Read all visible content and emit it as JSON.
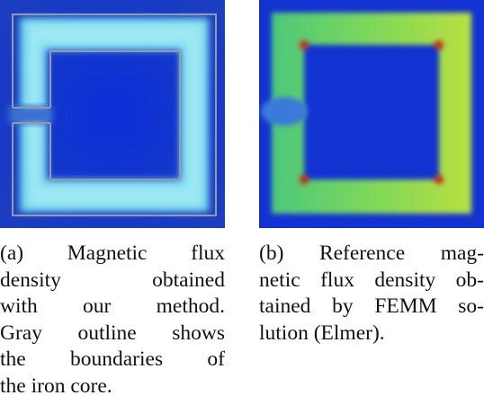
{
  "figures": [
    {
      "caption_lines": [
        "(a) Magnetic flux",
        "density obtained",
        "with our method.",
        "Gray outline shows",
        "the boundaries of",
        "the iron core."
      ]
    },
    {
      "caption_lines": [
        "(b) Reference mag-",
        "netic flux density ob-",
        "tained by FEMM so-",
        "lution (Elmer)."
      ]
    }
  ]
}
